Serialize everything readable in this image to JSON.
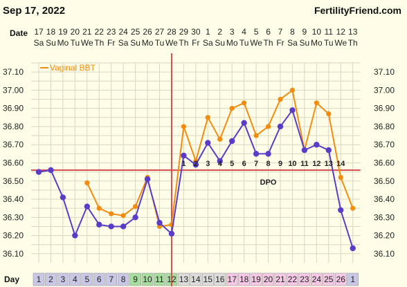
{
  "header": {
    "date_text": "Sep 17, 2022",
    "site": "FertilityFriend.com",
    "date_row_label": "Date",
    "day_row_label": "Day"
  },
  "chart_data": {
    "type": "line",
    "dates": [
      "17",
      "18",
      "19",
      "20",
      "21",
      "22",
      "23",
      "24",
      "25",
      "26",
      "27",
      "28",
      "29",
      "30",
      "1",
      "2",
      "3",
      "4",
      "5",
      "6",
      "7",
      "8",
      "9",
      "10",
      "11",
      "12",
      "13"
    ],
    "weekdays": [
      "Sa",
      "Su",
      "Mo",
      "Tu",
      "We",
      "Th",
      "Fr",
      "Sa",
      "Su",
      "Mo",
      "Tu",
      "We",
      "Th",
      "Fr",
      "Sa",
      "Su",
      "Mo",
      "Tu",
      "We",
      "Th",
      "Fr",
      "Sa",
      "Su",
      "Mo",
      "Tu",
      "We",
      "Th"
    ],
    "cycle_days": [
      "1",
      "2",
      "3",
      "4",
      "5",
      "6",
      "7",
      "8",
      "9",
      "10",
      "11",
      "12",
      "13",
      "14",
      "15",
      "16",
      "17",
      "18",
      "19",
      "20",
      "21",
      "22",
      "23",
      "24",
      "25",
      "26",
      "1"
    ],
    "y_ticks": [
      "37.10",
      "37.00",
      "36.90",
      "36.80",
      "36.70",
      "36.60",
      "36.50",
      "36.40",
      "36.30",
      "36.20",
      "36.10"
    ],
    "ylim": [
      36.05,
      37.15
    ],
    "coverline": 36.56,
    "ovulation_index": 11,
    "dpo_label": "DPO",
    "dpo_numbers": [
      "1",
      "2",
      "3",
      "4",
      "5",
      "6",
      "7",
      "8",
      "9",
      "10",
      "11",
      "12",
      "13",
      "14"
    ],
    "series": [
      {
        "name": "Vaginal BBT",
        "color": "#f28c10",
        "values": [
          null,
          null,
          null,
          null,
          36.49,
          36.35,
          36.32,
          36.31,
          36.36,
          36.52,
          36.25,
          36.26,
          36.8,
          36.61,
          36.85,
          36.73,
          36.9,
          36.93,
          36.75,
          36.8,
          36.95,
          37.0,
          36.67,
          36.93,
          36.87,
          36.52,
          36.35
        ]
      },
      {
        "name": "",
        "color": "#5a3cc8",
        "values": [
          36.55,
          36.56,
          36.41,
          36.2,
          36.36,
          36.26,
          36.25,
          36.25,
          36.3,
          36.51,
          36.27,
          36.21,
          36.64,
          36.59,
          36.71,
          36.61,
          36.72,
          36.82,
          36.65,
          36.65,
          36.8,
          36.89,
          36.67,
          36.7,
          36.67,
          36.34,
          36.13
        ]
      }
    ],
    "day_colors": [
      "#c8c8e6",
      "#c8c8e6",
      "#c8c8e6",
      "#c8c8e6",
      "#c8c8e6",
      "#c8c8e6",
      "#c8c8e6",
      "#c8c8e6",
      "#a8dca0",
      "#a8dca0",
      "#a8dca0",
      "#a8dca0",
      "#dcdcdc",
      "#dcdcdc",
      "#dcdcdc",
      "#dcdcdc",
      "#f5c8e6",
      "#f5c8e6",
      "#f5c8e6",
      "#f5c8e6",
      "#f5c8e6",
      "#f5c8e6",
      "#f5c8e6",
      "#f5c8e6",
      "#f5c8e6",
      "#f5c8e6",
      "#c8c8e6"
    ],
    "grid": true,
    "legend_position": "top-left"
  }
}
